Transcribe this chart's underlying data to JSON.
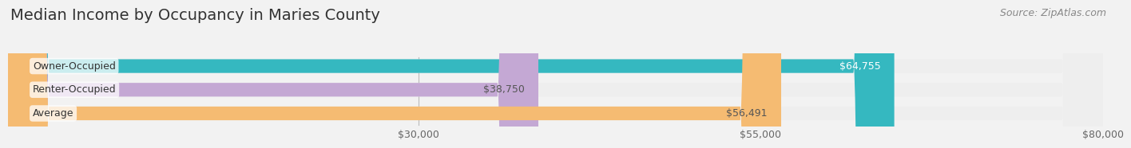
{
  "title": "Median Income by Occupancy in Maries County",
  "source": "Source: ZipAtlas.com",
  "categories": [
    "Owner-Occupied",
    "Renter-Occupied",
    "Average"
  ],
  "values": [
    64755,
    38750,
    56491
  ],
  "labels": [
    "$64,755",
    "$38,750",
    "$56,491"
  ],
  "bar_colors": [
    "#35b8c0",
    "#c4a8d4",
    "#f5bb72"
  ],
  "bar_bg_colors": [
    "#eeeeee",
    "#eeeeee",
    "#eeeeee"
  ],
  "value_label_colors": [
    "#ffffff",
    "#555555",
    "#555555"
  ],
  "xlim": [
    0,
    80000
  ],
  "xmin": 0,
  "xmax": 80000,
  "xticks": [
    30000,
    55000,
    80000
  ],
  "xtick_labels": [
    "$30,000",
    "$55,000",
    "$80,000"
  ],
  "title_fontsize": 14,
  "source_fontsize": 9,
  "cat_label_fontsize": 9,
  "bar_label_fontsize": 9,
  "bar_height": 0.58,
  "background_color": "#f2f2f2"
}
